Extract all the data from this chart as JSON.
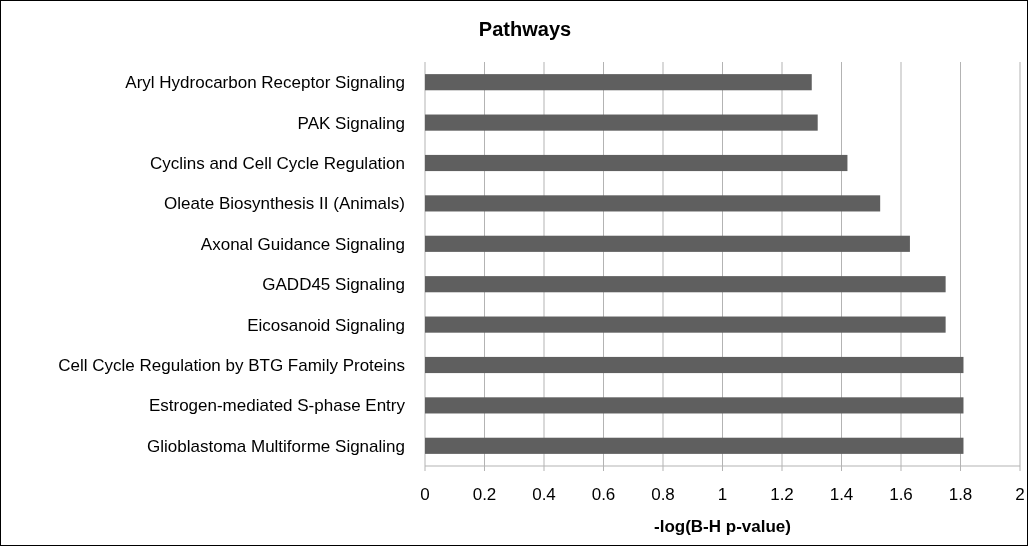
{
  "chart_data": {
    "type": "bar",
    "title": "Pathways",
    "xlabel": "-log(B-H p-value)",
    "orientation": "horizontal",
    "categories": [
      "Aryl Hydrocarbon Receptor Signaling",
      "PAK Signaling",
      "Cyclins and Cell Cycle Regulation",
      "Oleate Biosynthesis II (Animals)",
      "Axonal Guidance Signaling",
      "GADD45 Signaling",
      "Eicosanoid Signaling",
      "Cell Cycle Regulation by BTG Family Proteins",
      "Estrogen-mediated S-phase Entry",
      "Glioblastoma Multiforme Signaling"
    ],
    "values": [
      1.3,
      1.32,
      1.42,
      1.53,
      1.63,
      1.75,
      1.75,
      1.81,
      1.81,
      1.81
    ],
    "color": "#5f5f5f",
    "xlim": [
      0,
      2
    ],
    "xticks": [
      0,
      0.2,
      0.4,
      0.6,
      0.8,
      1,
      1.2,
      1.4,
      1.6,
      1.8,
      2
    ],
    "grid": "x"
  }
}
